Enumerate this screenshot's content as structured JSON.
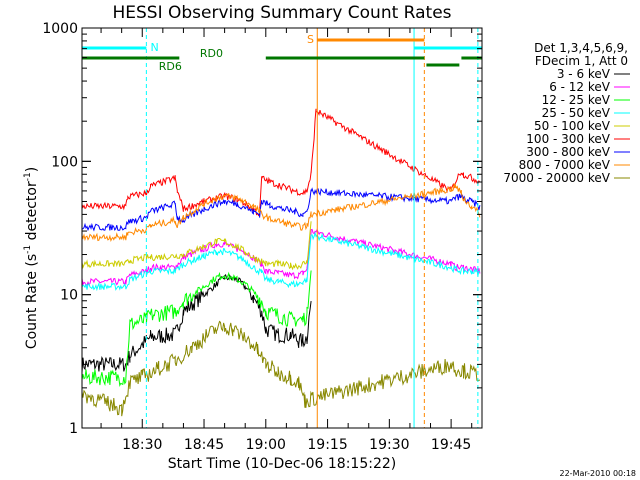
{
  "chart_data": {
    "type": "line",
    "title": "HESSI Observing Summary Count Rates",
    "xlabel": "Start Time (10-Dec-06 18:15:22)",
    "ylabel_main": "Count Rate (s",
    "ylabel_sup1": "-1",
    "ylabel_mid": " detector",
    "ylabel_sup2": "-1",
    "ylabel_end": ")",
    "yscale": "log",
    "ylim": [
      1,
      1000
    ],
    "xlim_min": [
      15.37,
      112.5
    ],
    "y_ticks": [
      {
        "value": 1,
        "label": "1"
      },
      {
        "value": 10,
        "label": "10"
      },
      {
        "value": 100,
        "label": "100"
      },
      {
        "value": 1000,
        "label": "1000"
      }
    ],
    "x_ticks": [
      {
        "min": 30,
        "label": "18:30"
      },
      {
        "min": 45,
        "label": "18:45"
      },
      {
        "min": 60,
        "label": "19:00"
      },
      {
        "min": 75,
        "label": "19:15"
      },
      {
        "min": 90,
        "label": "19:30"
      },
      {
        "min": 105,
        "label": "19:45"
      }
    ],
    "legend_header": [
      "Det 1,3,4,5,6,9,",
      "FDecim 1, Att 0"
    ],
    "series": [
      {
        "name": "3 - 6 keV",
        "color": "#000000",
        "x": [
          15.37,
          26,
          27,
          31,
          32,
          38,
          40,
          45,
          48,
          50,
          53,
          55,
          57,
          59,
          60,
          63,
          66,
          68,
          69,
          70,
          71
        ],
        "y": [
          3.0,
          3.0,
          3.5,
          4.5,
          4.8,
          5.0,
          7.5,
          10.0,
          12.0,
          13.5,
          13.0,
          11.5,
          9.5,
          7.5,
          5.5,
          5.0,
          5.0,
          4.5,
          4.5,
          4.8,
          9.0
        ]
      },
      {
        "name": "6 - 12 keV",
        "color": "#ff00ff",
        "x": [
          15.37,
          26,
          27,
          31,
          32,
          38,
          40,
          45,
          48,
          50,
          53,
          55,
          57,
          59,
          60,
          63,
          66,
          68,
          69,
          70,
          71,
          105,
          106,
          108,
          110,
          112
        ],
        "y": [
          12.5,
          12.5,
          14.0,
          15.0,
          16.0,
          16.0,
          19.0,
          22.0,
          24.0,
          24.0,
          22.0,
          21.0,
          19.0,
          17.0,
          15.0,
          14.5,
          14.0,
          14.0,
          14.5,
          15.5,
          30.0,
          17.0,
          16.0,
          16.0,
          15.5,
          15.0
        ]
      },
      {
        "name": "12 - 25 keV",
        "color": "#00ff00",
        "x": [
          15.37,
          26,
          27,
          31,
          32,
          38,
          40,
          45,
          48,
          50,
          53,
          55,
          57,
          59,
          60,
          63,
          66,
          68,
          69,
          70,
          71
        ],
        "y": [
          2.4,
          2.4,
          6.0,
          6.5,
          7.0,
          7.5,
          9.0,
          11.5,
          13.5,
          14.0,
          13.0,
          12.0,
          10.5,
          9.0,
          7.5,
          7.0,
          6.5,
          6.5,
          6.5,
          7.0,
          16.0
        ]
      },
      {
        "name": "25 - 50 keV",
        "color": "#00ffff",
        "x": [
          15.37,
          26,
          27,
          31,
          32,
          38,
          40,
          45,
          48,
          50,
          53,
          55,
          57,
          59,
          60,
          63,
          66,
          68,
          69,
          70,
          71,
          105,
          106,
          108,
          110,
          112
        ],
        "y": [
          11.5,
          11.5,
          13.0,
          14.5,
          15.0,
          15.0,
          17.0,
          19.5,
          21.0,
          21.0,
          19.5,
          18.0,
          16.0,
          14.5,
          13.0,
          12.5,
          12.0,
          12.0,
          12.5,
          13.0,
          28.0,
          16.0,
          15.5,
          15.0,
          15.0,
          14.5
        ]
      },
      {
        "name": "50 - 100 keV",
        "color": "#cccc00",
        "x": [
          15.37,
          26,
          27,
          31,
          32,
          38,
          40,
          45,
          48,
          50,
          53,
          55,
          57,
          59,
          60,
          63,
          66,
          68,
          69,
          70,
          71
        ],
        "y": [
          17.0,
          17.0,
          18.0,
          19.0,
          19.0,
          19.5,
          20.0,
          23.0,
          25.0,
          25.0,
          23.0,
          21.0,
          19.0,
          18.0,
          17.0,
          17.0,
          16.5,
          16.5,
          17.0,
          17.5,
          35.0
        ]
      },
      {
        "name": "100 - 300 keV",
        "color": "#ff0000",
        "x": [
          15.37,
          26,
          26.5,
          31,
          32,
          38,
          38.5,
          40,
          45,
          48,
          50,
          53,
          55,
          57,
          58.5,
          59,
          61,
          64,
          67,
          69,
          70,
          71,
          72.2,
          105,
          106,
          107.5,
          108,
          110,
          112
        ],
        "y": [
          46.0,
          46.0,
          54.0,
          58.0,
          65.0,
          75.0,
          60.0,
          44.0,
          50.0,
          53.0,
          55.0,
          52.0,
          48.0,
          44.0,
          40.0,
          75.0,
          70.0,
          65.0,
          60.0,
          58.0,
          60.0,
          80.0,
          240.0,
          60.0,
          70.0,
          85.0,
          80.0,
          75.0,
          70.0
        ]
      },
      {
        "name": "300 - 800 keV",
        "color": "#0000ff",
        "x": [
          15.37,
          26,
          26.5,
          31,
          32,
          38,
          38.5,
          40,
          45,
          48,
          50,
          53,
          55,
          57,
          58.5,
          59,
          61,
          64,
          67,
          69,
          70,
          71,
          105,
          106,
          107.5,
          108,
          110,
          112
        ],
        "y": [
          32.0,
          32.0,
          35.0,
          38.0,
          42.0,
          48.0,
          38.0,
          36.0,
          44.0,
          48.0,
          50.0,
          48.0,
          45.0,
          42.0,
          40.0,
          50.0,
          47.0,
          44.0,
          42.0,
          40.0,
          42.0,
          60.0,
          50.0,
          53.0,
          55.0,
          52.0,
          50.0,
          45.0
        ]
      },
      {
        "name": "800 - 7000 keV",
        "color": "#ff8800",
        "x": [
          15.37,
          26,
          26.5,
          31,
          32,
          38,
          38.5,
          40,
          45,
          48,
          50,
          53,
          55,
          57,
          58.5,
          59,
          61,
          64,
          67,
          69,
          70,
          71,
          105,
          106,
          107.5,
          108,
          110,
          112
        ],
        "y": [
          27.0,
          27.0,
          29.0,
          31.0,
          33.0,
          36.0,
          33.0,
          38.0,
          48.0,
          53.0,
          55.0,
          53.0,
          50.0,
          46.0,
          42.0,
          40.0,
          37.0,
          35.0,
          33.0,
          32.0,
          33.0,
          40.0,
          62.0,
          65.0,
          58.0,
          52.0,
          46.0,
          40.0
        ]
      },
      {
        "name": "7000 - 20000 keV",
        "color": "#888800",
        "x": [
          15.37,
          20,
          25,
          27,
          30,
          34,
          38,
          42,
          46,
          48,
          50,
          52,
          54,
          56,
          58,
          60,
          63,
          66,
          68,
          69.5,
          105,
          106,
          108,
          110,
          112
        ],
        "y": [
          1.8,
          1.6,
          1.4,
          2.2,
          2.4,
          2.8,
          3.2,
          4.0,
          5.0,
          5.5,
          5.8,
          5.5,
          5.0,
          4.5,
          3.8,
          3.0,
          2.6,
          2.4,
          2.2,
          1.6,
          3.0,
          2.8,
          2.7,
          2.6,
          2.5
        ]
      }
    ],
    "attenuator_segments": [
      {
        "x0": 15.37,
        "x1": 31,
        "level": "top",
        "color": "#00ffff"
      },
      {
        "x0": 96,
        "x1": 112.5,
        "level": "top",
        "color": "#00ffff"
      },
      {
        "x0": 15.37,
        "x1": 38,
        "level": "mid",
        "color": "#007700"
      },
      {
        "x0": 60,
        "x1": 98.5,
        "level": "mid",
        "color": "#007700"
      },
      {
        "x0": 99,
        "x1": 107,
        "level": "low",
        "color": "#007700"
      },
      {
        "x0": 107.5,
        "x1": 112.5,
        "level": "mid",
        "color": "#007700"
      },
      {
        "x0": 28.5,
        "x1": 39,
        "level": "mid",
        "color": "#007700"
      },
      {
        "x0": 72.5,
        "x1": 98.5,
        "level": "topmost",
        "color": "#ff8800"
      }
    ],
    "flags": [
      {
        "text": "N",
        "x": 32,
        "level": "top",
        "color": "#00ffff"
      },
      {
        "text": "RD0",
        "x": 44,
        "level": "mid_above",
        "color": "#007700"
      },
      {
        "text": "RD6",
        "x": 34,
        "level": "mid_below",
        "color": "#007700"
      },
      {
        "text": "S",
        "x": 70,
        "level": "topmost",
        "color": "#ff8800"
      }
    ],
    "vertical_lines": [
      {
        "x": 31,
        "color": "#00ffff",
        "dashed": true
      },
      {
        "x": 72.5,
        "color": "#ff8800",
        "dashed": false
      },
      {
        "x": 96,
        "color": "#00ffff",
        "dashed": false
      },
      {
        "x": 98.5,
        "color": "#ff8800",
        "dashed": true
      },
      {
        "x": 111.5,
        "color": "#00ffff",
        "dashed": true
      }
    ]
  },
  "footer_date": "22-Mar-2010 00:18"
}
